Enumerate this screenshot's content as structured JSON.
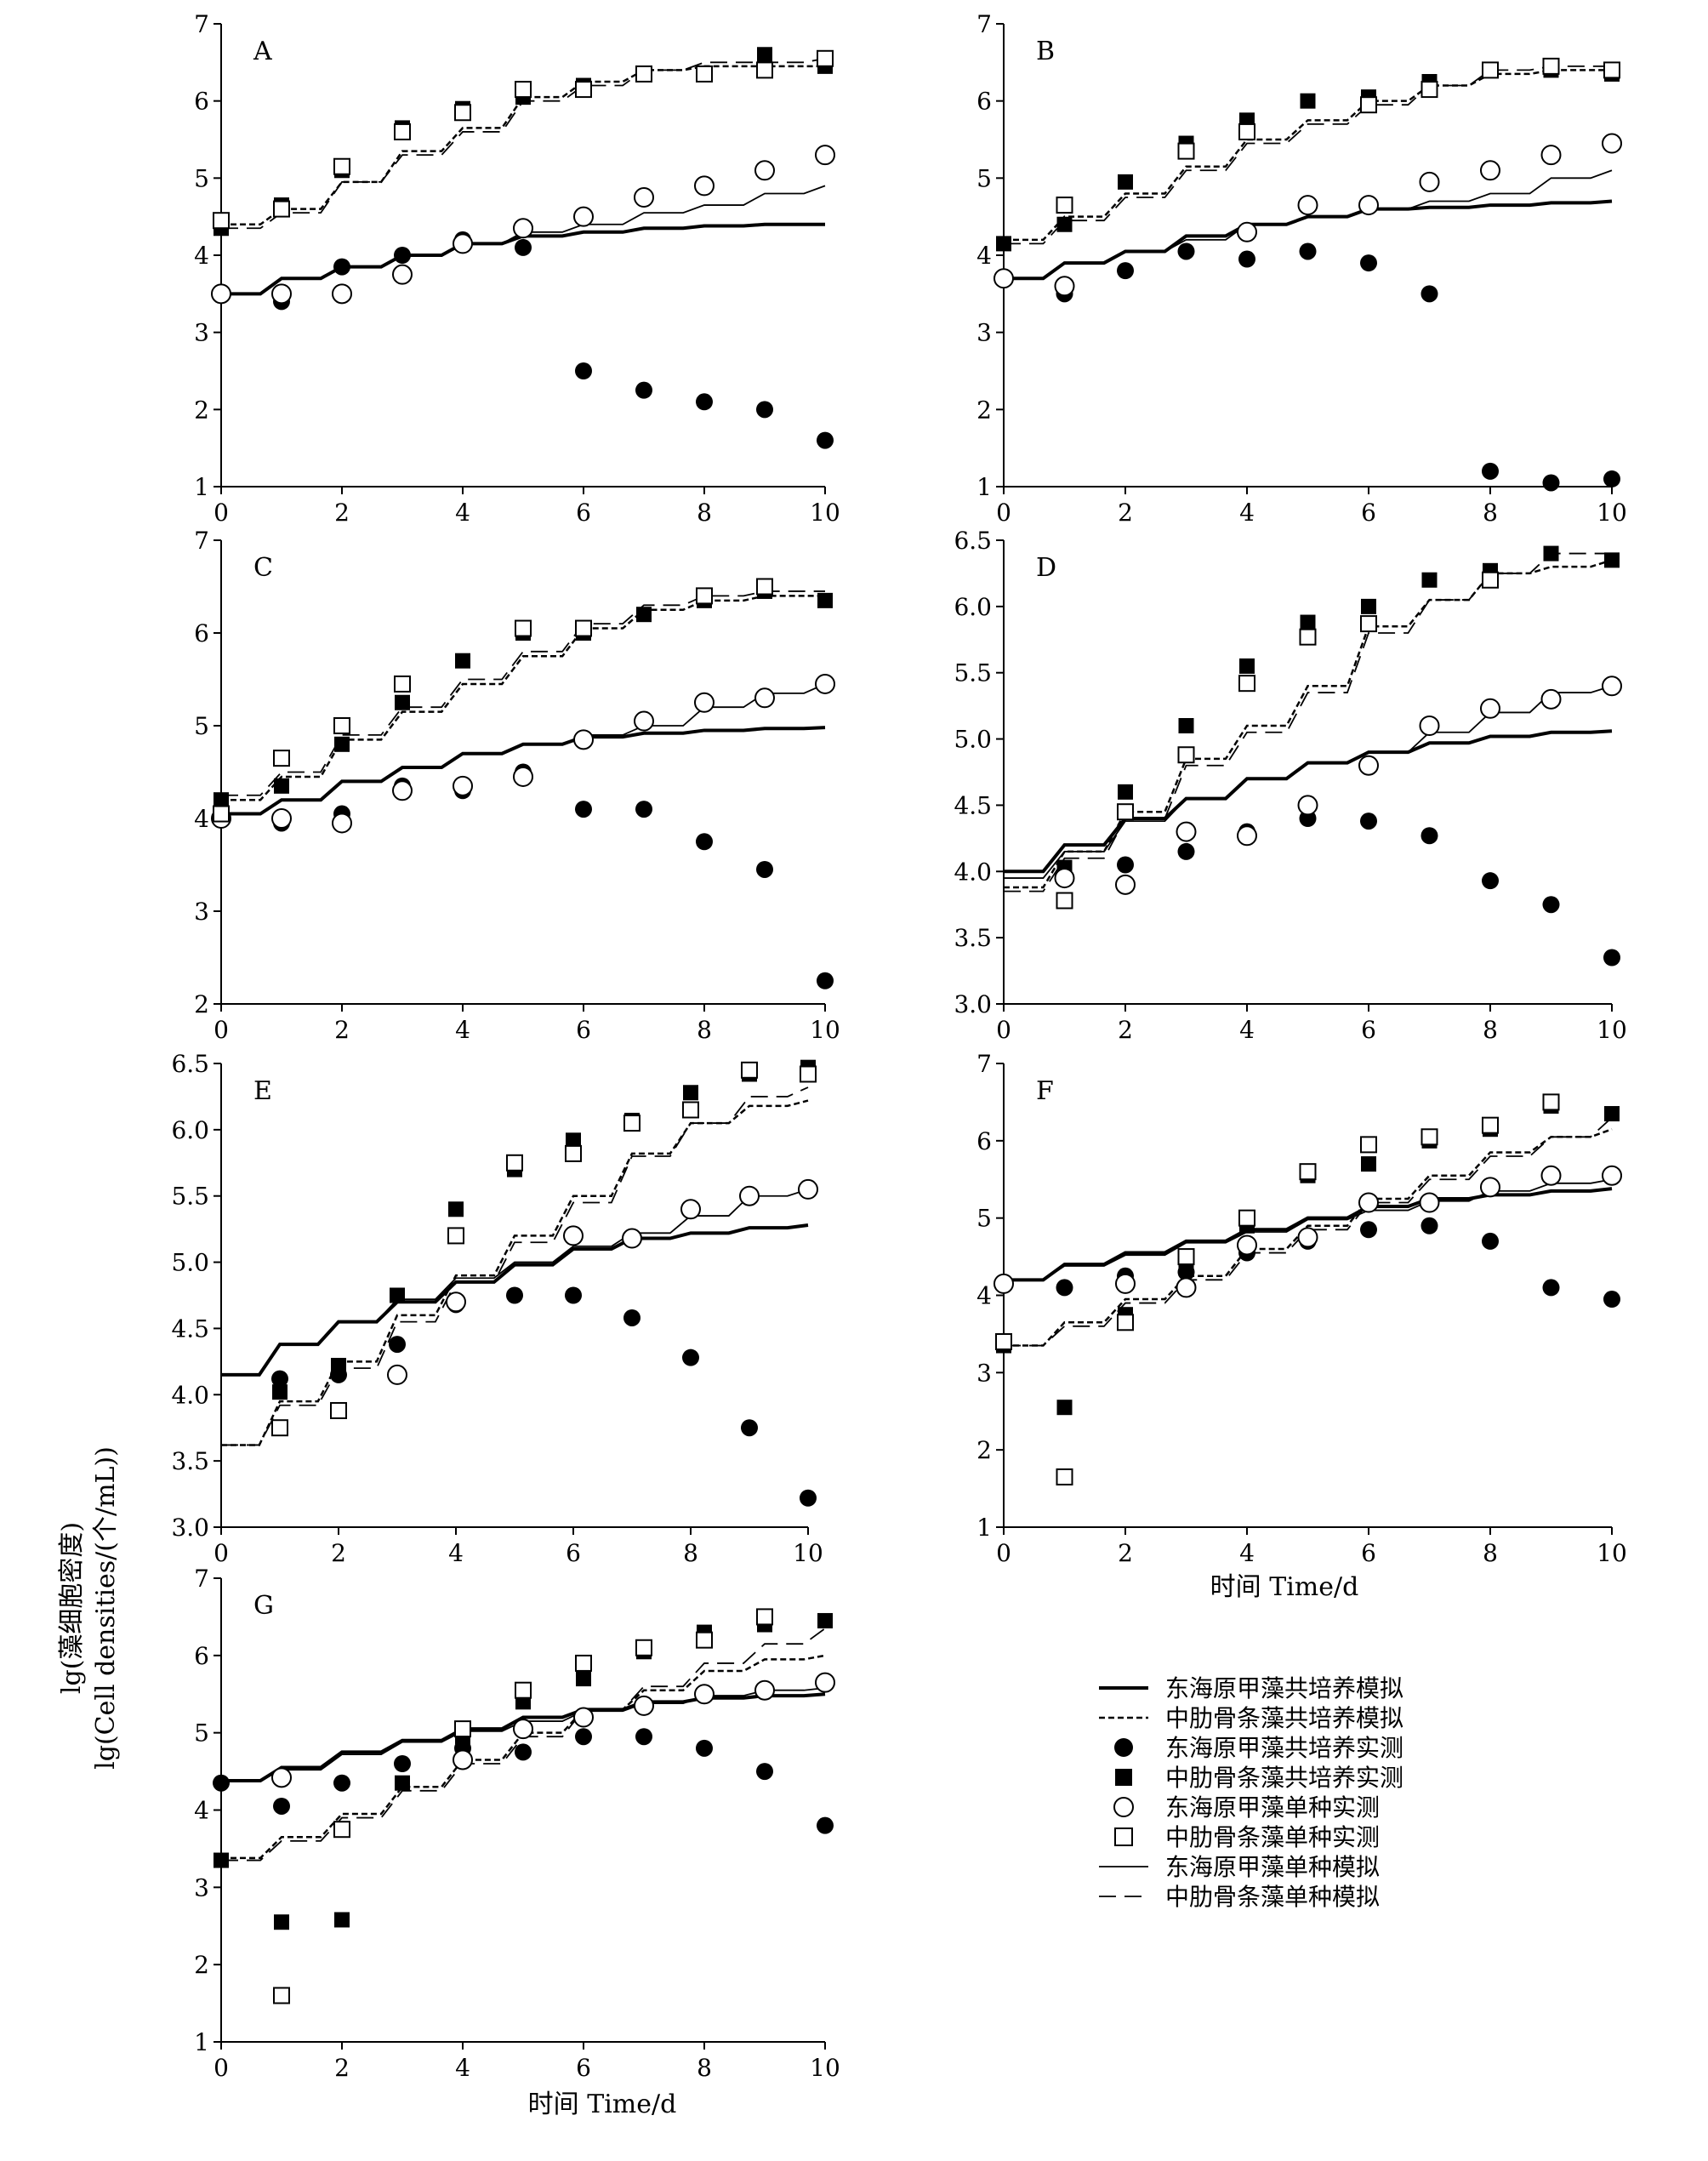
{
  "y_label_line1": "lg(藻细胞密度)",
  "y_label_line2": "lg(Cell densities/(个/mL))",
  "x_label_right": "时间  Time/d",
  "x_label_bottom": "时间  Time/d",
  "legend": [
    {
      "key": "a",
      "label": "东海原甲藻共培养模拟",
      "style": "thick-solid"
    },
    {
      "key": "b",
      "label": "中肋骨条藻共培养模拟",
      "style": "short-dash"
    },
    {
      "key": "c",
      "label": "东海原甲藻共培养实测",
      "style": "filled-circle"
    },
    {
      "key": "d",
      "label": "中肋骨条藻共培养实测",
      "style": "filled-square"
    },
    {
      "key": "e",
      "label": "东海原甲藻单种实测",
      "style": "open-circle"
    },
    {
      "key": "f",
      "label": "中肋骨条藻单种实测",
      "style": "open-square"
    },
    {
      "key": "g",
      "label": "东海原甲藻单种模拟",
      "style": "thin-solid"
    },
    {
      "key": "h",
      "label": "中肋骨条藻单种模拟",
      "style": "long-dash"
    }
  ],
  "chart_data": [
    {
      "panel": "A",
      "type": "scatter",
      "xlim": [
        0,
        10
      ],
      "ylim": [
        1,
        7
      ],
      "xticks": [
        0,
        2,
        4,
        6,
        8,
        10
      ],
      "yticks": [
        1,
        2,
        3,
        4,
        5,
        6,
        7
      ],
      "ytick_labels": [
        "1",
        "2",
        "3",
        "4",
        "5",
        "6",
        "7"
      ],
      "x": [
        0,
        1,
        2,
        3,
        4,
        5,
        6,
        7,
        8,
        9,
        10
      ],
      "points": {
        "c": [
          3.5,
          3.4,
          3.85,
          4.0,
          4.2,
          4.1,
          2.5,
          2.25,
          2.1,
          2.0,
          1.6
        ],
        "d": [
          4.35,
          4.65,
          5.1,
          5.65,
          5.9,
          6.05,
          6.2,
          6.35,
          6.35,
          6.6,
          6.45
        ],
        "e": [
          3.5,
          3.5,
          3.5,
          3.75,
          4.15,
          4.35,
          4.5,
          4.75,
          4.9,
          5.1,
          5.3
        ],
        "f": [
          4.45,
          4.6,
          5.15,
          5.6,
          5.85,
          6.15,
          6.15,
          6.35,
          6.35,
          6.4,
          6.55
        ]
      },
      "lines": {
        "a": [
          3.5,
          3.7,
          3.85,
          4.0,
          4.15,
          4.25,
          4.3,
          4.35,
          4.38,
          4.4,
          4.4
        ],
        "b": [
          4.4,
          4.6,
          4.95,
          5.35,
          5.65,
          6.05,
          6.25,
          6.4,
          6.45,
          6.45,
          6.45
        ],
        "g": [
          3.5,
          3.7,
          3.85,
          4.0,
          4.15,
          4.3,
          4.4,
          4.55,
          4.65,
          4.8,
          4.9
        ],
        "h": [
          4.35,
          4.55,
          4.95,
          5.3,
          5.6,
          6.0,
          6.2,
          6.4,
          6.5,
          6.5,
          6.55
        ]
      }
    },
    {
      "panel": "B",
      "type": "scatter",
      "xlim": [
        0,
        10
      ],
      "ylim": [
        1,
        7
      ],
      "xticks": [
        0,
        2,
        4,
        6,
        8,
        10
      ],
      "yticks": [
        1,
        2,
        3,
        4,
        5,
        6,
        7
      ],
      "ytick_labels": [
        "1",
        "2",
        "3",
        "4",
        "5",
        "6",
        "7"
      ],
      "x": [
        0,
        1,
        2,
        3,
        4,
        5,
        6,
        7,
        8,
        9,
        10
      ],
      "points": {
        "c": [
          3.7,
          3.5,
          3.8,
          4.05,
          3.95,
          4.05,
          3.9,
          3.5,
          1.2,
          1.05,
          1.1
        ],
        "d": [
          4.15,
          4.4,
          4.95,
          5.45,
          5.75,
          6.0,
          6.05,
          6.25,
          6.4,
          6.4,
          6.35
        ],
        "e": [
          3.7,
          3.6,
          null,
          null,
          4.3,
          4.65,
          4.65,
          4.95,
          5.1,
          5.3,
          5.45
        ],
        "f": [
          null,
          4.65,
          null,
          5.35,
          5.6,
          null,
          5.95,
          6.15,
          6.4,
          6.45,
          6.4
        ]
      },
      "lines": {
        "a": [
          3.7,
          3.9,
          4.05,
          4.25,
          4.4,
          4.5,
          4.6,
          4.62,
          4.65,
          4.68,
          4.7
        ],
        "b": [
          4.2,
          4.5,
          4.8,
          5.15,
          5.5,
          5.75,
          6.0,
          6.2,
          6.35,
          6.4,
          6.4
        ],
        "g": [
          3.7,
          3.9,
          4.05,
          4.2,
          4.4,
          4.5,
          4.6,
          4.7,
          4.8,
          5.0,
          5.1
        ],
        "h": [
          4.15,
          4.45,
          4.75,
          5.1,
          5.45,
          5.7,
          5.95,
          6.2,
          6.4,
          6.45,
          6.45
        ]
      }
    },
    {
      "panel": "C",
      "type": "scatter",
      "xlim": [
        0,
        10
      ],
      "ylim": [
        2,
        7
      ],
      "xticks": [
        0,
        2,
        4,
        6,
        8,
        10
      ],
      "yticks": [
        2,
        3,
        4,
        5,
        6,
        7
      ],
      "ytick_labels": [
        "2",
        "3",
        "4",
        "5",
        "6",
        "7"
      ],
      "x": [
        0,
        1,
        2,
        3,
        4,
        5,
        6,
        7,
        8,
        9,
        10
      ],
      "points": {
        "c": [
          4.0,
          3.95,
          4.05,
          4.35,
          4.3,
          4.5,
          4.1,
          4.1,
          3.75,
          3.45,
          2.25
        ],
        "d": [
          4.2,
          4.35,
          4.8,
          5.25,
          5.7,
          6.0,
          6.0,
          6.2,
          6.35,
          6.45,
          6.35
        ],
        "e": [
          4.0,
          4.0,
          3.95,
          4.3,
          4.35,
          4.45,
          4.85,
          5.05,
          5.25,
          5.3,
          5.45
        ],
        "f": [
          4.05,
          4.65,
          5.0,
          5.45,
          null,
          6.05,
          6.05,
          null,
          6.4,
          6.5,
          null
        ]
      },
      "lines": {
        "a": [
          4.05,
          4.2,
          4.4,
          4.55,
          4.7,
          4.8,
          4.88,
          4.92,
          4.95,
          4.97,
          4.98
        ],
        "b": [
          4.2,
          4.45,
          4.85,
          5.15,
          5.45,
          5.75,
          6.05,
          6.25,
          6.35,
          6.4,
          6.4
        ],
        "g": [
          4.05,
          4.2,
          4.4,
          4.55,
          4.7,
          4.8,
          4.9,
          5.0,
          5.2,
          5.35,
          5.45
        ],
        "h": [
          4.25,
          4.5,
          4.9,
          5.2,
          5.5,
          5.8,
          6.1,
          6.3,
          6.4,
          6.45,
          6.45
        ]
      }
    },
    {
      "panel": "D",
      "type": "scatter",
      "xlim": [
        0,
        10
      ],
      "ylim": [
        3.0,
        6.5
      ],
      "xticks": [
        0,
        2,
        4,
        6,
        8,
        10
      ],
      "yticks": [
        3.0,
        3.5,
        4.0,
        4.5,
        5.0,
        5.5,
        6.0,
        6.5
      ],
      "ytick_labels": [
        "3.0",
        "3.5",
        "4.0",
        "4.5",
        "5.0",
        "5.5",
        "6.0",
        "6.5"
      ],
      "x": [
        0,
        1,
        2,
        3,
        4,
        5,
        6,
        7,
        8,
        9,
        10
      ],
      "points": {
        "c": [
          null,
          3.95,
          4.05,
          4.15,
          4.3,
          4.4,
          4.38,
          4.27,
          3.93,
          3.75,
          3.35
        ],
        "d": [
          null,
          4.03,
          4.6,
          5.1,
          5.55,
          5.88,
          6.0,
          6.2,
          6.27,
          6.4,
          6.35
        ],
        "e": [
          null,
          3.95,
          3.9,
          4.3,
          4.27,
          4.5,
          4.8,
          5.1,
          5.23,
          5.3,
          5.4
        ],
        "f": [
          null,
          3.78,
          4.45,
          4.88,
          5.42,
          5.77,
          5.87,
          null,
          6.2,
          null,
          null
        ]
      },
      "lines": {
        "a": [
          4.0,
          4.2,
          4.4,
          4.55,
          4.7,
          4.82,
          4.9,
          4.97,
          5.02,
          5.05,
          5.06
        ],
        "b": [
          3.88,
          4.15,
          4.45,
          4.85,
          5.1,
          5.4,
          5.85,
          6.05,
          6.25,
          6.3,
          6.35
        ],
        "g": [
          3.95,
          4.15,
          4.38,
          4.55,
          4.7,
          4.82,
          4.9,
          5.05,
          5.2,
          5.35,
          5.4
        ],
        "h": [
          3.85,
          4.1,
          4.4,
          4.8,
          5.05,
          5.35,
          5.8,
          6.05,
          6.25,
          6.4,
          6.4
        ]
      }
    },
    {
      "panel": "E",
      "type": "scatter",
      "xlim": [
        0,
        10
      ],
      "ylim": [
        3.0,
        6.5
      ],
      "xticks": [
        0,
        2,
        4,
        6,
        8,
        10
      ],
      "yticks": [
        3.0,
        3.5,
        4.0,
        4.5,
        5.0,
        5.5,
        6.0,
        6.5
      ],
      "ytick_labels": [
        "3.0",
        "3.5",
        "4.0",
        "4.5",
        "5.0",
        "5.5",
        "6.0",
        "6.5"
      ],
      "x": [
        0,
        1,
        2,
        3,
        4,
        5,
        6,
        7,
        8,
        9,
        10
      ],
      "points": {
        "c": [
          null,
          4.12,
          4.15,
          4.38,
          4.68,
          4.75,
          4.75,
          4.58,
          4.28,
          3.75,
          3.22
        ],
        "d": [
          null,
          4.02,
          4.22,
          4.75,
          5.4,
          5.7,
          5.92,
          6.07,
          6.28,
          6.42,
          6.47
        ],
        "e": [
          null,
          null,
          null,
          4.15,
          4.7,
          null,
          5.2,
          5.18,
          5.4,
          5.5,
          5.55
        ],
        "f": [
          null,
          3.75,
          3.88,
          null,
          5.2,
          5.75,
          5.82,
          6.05,
          6.15,
          6.45,
          6.42
        ]
      },
      "lines": {
        "a": [
          4.15,
          4.38,
          4.55,
          4.7,
          4.85,
          4.98,
          5.1,
          5.18,
          5.22,
          5.26,
          5.28
        ],
        "b": [
          3.62,
          3.95,
          4.25,
          4.6,
          4.9,
          5.2,
          5.5,
          5.82,
          6.05,
          6.18,
          6.22
        ],
        "g": [
          4.15,
          4.38,
          4.55,
          4.72,
          4.88,
          5.0,
          5.12,
          5.22,
          5.35,
          5.5,
          5.55
        ],
        "h": [
          3.62,
          3.92,
          4.2,
          4.55,
          4.85,
          5.15,
          5.45,
          5.8,
          6.05,
          6.25,
          6.32
        ]
      }
    },
    {
      "panel": "F",
      "type": "scatter",
      "xlim": [
        0,
        10
      ],
      "ylim": [
        1,
        7
      ],
      "xticks": [
        0,
        2,
        4,
        6,
        8,
        10
      ],
      "yticks": [
        1,
        2,
        3,
        4,
        5,
        6,
        7
      ],
      "ytick_labels": [
        "1",
        "2",
        "3",
        "4",
        "5",
        "6",
        "7"
      ],
      "x": [
        0,
        1,
        2,
        3,
        4,
        5,
        6,
        7,
        8,
        9,
        10
      ],
      "points": {
        "c": [
          4.15,
          4.1,
          4.25,
          4.3,
          4.55,
          4.7,
          4.85,
          4.9,
          4.7,
          4.1,
          3.95
        ],
        "d": [
          3.35,
          2.55,
          3.75,
          4.35,
          4.9,
          5.55,
          5.7,
          6.0,
          6.15,
          6.45,
          6.35
        ],
        "e": [
          4.15,
          null,
          4.15,
          4.1,
          4.65,
          4.75,
          5.2,
          5.2,
          5.4,
          5.55,
          5.55
        ],
        "f": [
          3.4,
          1.65,
          3.65,
          4.5,
          5.0,
          5.6,
          5.95,
          6.05,
          6.2,
          6.5,
          null
        ]
      },
      "lines": {
        "a": [
          4.2,
          4.4,
          4.55,
          4.7,
          4.85,
          5.0,
          5.15,
          5.25,
          5.3,
          5.35,
          5.38
        ],
        "b": [
          3.35,
          3.65,
          3.95,
          4.25,
          4.6,
          4.9,
          5.25,
          5.55,
          5.85,
          6.05,
          6.15
        ],
        "g": [
          4.2,
          4.38,
          4.52,
          4.68,
          4.82,
          4.98,
          5.1,
          5.22,
          5.35,
          5.45,
          5.5
        ],
        "h": [
          3.35,
          3.6,
          3.9,
          4.2,
          4.55,
          4.85,
          5.2,
          5.5,
          5.8,
          6.05,
          6.3
        ]
      }
    },
    {
      "panel": "G",
      "type": "scatter",
      "xlim": [
        0,
        10
      ],
      "ylim": [
        1,
        7
      ],
      "xticks": [
        0,
        2,
        4,
        6,
        8,
        10
      ],
      "yticks": [
        1,
        2,
        3,
        4,
        5,
        6,
        7
      ],
      "ytick_labels": [
        "1",
        "2",
        "3",
        "4",
        "5",
        "6",
        "7"
      ],
      "x": [
        0,
        1,
        2,
        3,
        4,
        5,
        6,
        7,
        8,
        9,
        10
      ],
      "points": {
        "c": [
          4.35,
          4.05,
          4.35,
          4.6,
          4.8,
          4.75,
          4.95,
          4.95,
          4.8,
          4.5,
          3.8
        ],
        "d": [
          3.35,
          2.55,
          2.58,
          4.35,
          4.95,
          5.4,
          5.7,
          6.05,
          6.3,
          6.4,
          6.45
        ],
        "e": [
          null,
          4.42,
          null,
          null,
          4.65,
          5.05,
          5.2,
          5.35,
          5.5,
          5.55,
          5.65
        ],
        "f": [
          null,
          1.6,
          3.75,
          null,
          5.05,
          5.55,
          5.9,
          6.1,
          6.2,
          6.5,
          null
        ]
      },
      "lines": {
        "a": [
          4.38,
          4.55,
          4.75,
          4.9,
          5.05,
          5.2,
          5.3,
          5.4,
          5.45,
          5.48,
          5.5
        ],
        "b": [
          3.38,
          3.65,
          3.95,
          4.3,
          4.65,
          5.0,
          5.3,
          5.55,
          5.8,
          5.95,
          6.0
        ],
        "g": [
          4.38,
          4.52,
          4.72,
          4.88,
          5.02,
          5.15,
          5.28,
          5.38,
          5.48,
          5.55,
          5.58
        ],
        "h": [
          3.35,
          3.6,
          3.9,
          4.25,
          4.6,
          4.95,
          5.3,
          5.6,
          5.9,
          6.15,
          6.35
        ]
      }
    }
  ]
}
